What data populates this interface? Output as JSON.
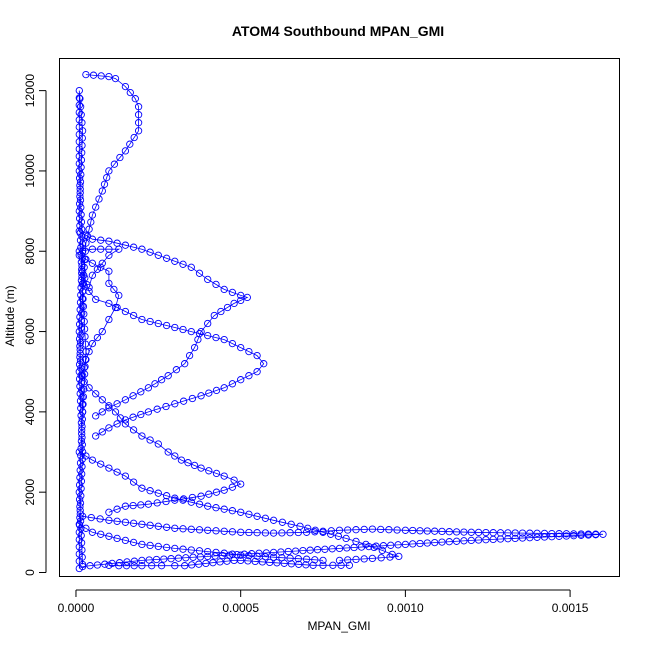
{
  "chart_data": {
    "type": "scatter",
    "title": "ATOM4 Southbound MPAN_GMI",
    "xlabel": "MPAN_GMI",
    "ylabel": "Altitude (m)",
    "xlim": [
      -5e-05,
      0.00165
    ],
    "ylim": [
      -100,
      12800
    ],
    "x_ticks": [
      0.0,
      0.0005,
      0.001,
      0.0015
    ],
    "x_tick_labels": [
      "0.0000",
      "0.0005",
      "0.0010",
      "0.0015"
    ],
    "y_ticks": [
      0,
      2000,
      4000,
      6000,
      8000,
      10000,
      12000
    ],
    "y_tick_labels": [
      "0",
      "2000",
      "4000",
      "6000",
      "8000",
      "10000",
      "12000"
    ],
    "marker": "open-circle",
    "connected": true,
    "color": "#0000ff",
    "grid": false,
    "series": [
      {
        "points": [
          [
            2e-05,
            200
          ],
          [
            1e-05,
            2000
          ],
          [
            2e-05,
            4000
          ],
          [
            1e-05,
            6000
          ],
          [
            2e-05,
            8000
          ],
          [
            1e-05,
            10000
          ],
          [
            1e-05,
            12000
          ],
          [
            2e-05,
            11000
          ],
          [
            1e-05,
            9000
          ],
          [
            2e-05,
            7000
          ],
          [
            1e-05,
            5000
          ],
          [
            2e-05,
            3000
          ],
          [
            1e-05,
            1000
          ],
          [
            1e-05,
            100
          ]
        ]
      },
      {
        "points": [
          [
            3e-05,
            12400
          ],
          [
            0.0001,
            12350
          ],
          [
            0.00012,
            12300
          ],
          [
            0.00015,
            12100
          ],
          [
            0.00018,
            11800
          ],
          [
            0.00019,
            11600
          ],
          [
            0.00019,
            11000
          ],
          [
            0.00015,
            10500
          ],
          [
            0.0001,
            10000
          ],
          [
            8e-05,
            9500
          ],
          [
            5e-05,
            8900
          ],
          [
            3e-05,
            8200
          ],
          [
            2e-05,
            7000
          ],
          [
            3e-05,
            5500
          ],
          [
            2e-05,
            4000
          ]
        ]
      },
      {
        "points": [
          [
            1e-05,
            8500
          ],
          [
            5e-05,
            8300
          ],
          [
            0.0001,
            8250
          ],
          [
            0.00015,
            8150
          ],
          [
            0.0002,
            8050
          ],
          [
            0.00025,
            7900
          ],
          [
            0.0003,
            7750
          ],
          [
            0.00035,
            7600
          ],
          [
            0.0004,
            7300
          ],
          [
            0.00045,
            7050
          ],
          [
            0.0005,
            6900
          ],
          [
            0.00052,
            6850
          ],
          [
            0.00048,
            6700
          ],
          [
            0.00042,
            6400
          ],
          [
            0.00038,
            6000
          ],
          [
            0.00036,
            5600
          ],
          [
            0.00033,
            5200
          ],
          [
            0.00028,
            4900
          ],
          [
            0.00022,
            4600
          ],
          [
            0.00015,
            4300
          ],
          [
            0.0001,
            4100
          ],
          [
            6e-05,
            3900
          ]
        ]
      },
      {
        "points": [
          [
            2e-05,
            7500
          ],
          [
            4e-05,
            7000
          ],
          [
            6e-05,
            6800
          ],
          [
            0.0001,
            6700
          ],
          [
            0.00015,
            6500
          ],
          [
            0.0002,
            6300
          ],
          [
            0.00025,
            6200
          ],
          [
            0.0003,
            6100
          ],
          [
            0.00035,
            6000
          ],
          [
            0.0004,
            5900
          ],
          [
            0.00045,
            5800
          ],
          [
            0.0005,
            5600
          ],
          [
            0.00055,
            5400
          ],
          [
            0.00057,
            5200
          ],
          [
            0.00055,
            5000
          ],
          [
            0.0005,
            4800
          ],
          [
            0.00045,
            4600
          ],
          [
            0.00038,
            4400
          ],
          [
            0.0003,
            4200
          ],
          [
            0.00022,
            4000
          ],
          [
            0.00015,
            3800
          ],
          [
            0.0001,
            3600
          ],
          [
            6e-05,
            3400
          ]
        ]
      },
      {
        "points": [
          [
            1e-05,
            7900
          ],
          [
            5e-05,
            7700
          ],
          [
            0.0001,
            7500
          ],
          [
            0.0001,
            7200
          ],
          [
            0.00013,
            6900
          ],
          [
            0.00012,
            6600
          ],
          [
            0.0001,
            6300
          ],
          [
            8e-05,
            6000
          ],
          [
            5e-05,
            5700
          ],
          [
            3e-05,
            5300
          ],
          [
            2e-05,
            4900
          ],
          [
            4e-05,
            4600
          ],
          [
            8e-05,
            4300
          ],
          [
            0.00012,
            4000
          ],
          [
            0.00015,
            3700
          ],
          [
            0.0002,
            3400
          ],
          [
            0.00025,
            3200
          ],
          [
            0.00028,
            3000
          ],
          [
            0.00032,
            2800
          ],
          [
            0.00038,
            2600
          ],
          [
            0.00045,
            2400
          ],
          [
            0.00048,
            2300
          ],
          [
            0.0005,
            2200
          ],
          [
            0.00045,
            2050
          ],
          [
            0.00038,
            1900
          ],
          [
            0.0003,
            1800
          ],
          [
            0.00022,
            1700
          ],
          [
            0.00015,
            1650
          ],
          [
            0.0001,
            1500
          ]
        ]
      },
      {
        "points": [
          [
            1e-05,
            8000
          ],
          [
            5e-05,
            8050
          ],
          [
            0.0001,
            8050
          ],
          [
            0.00013,
            8050
          ],
          [
            0.0001,
            7900
          ],
          [
            8e-05,
            7700
          ],
          [
            5e-05,
            7400
          ],
          [
            4e-05,
            7100
          ]
        ]
      },
      {
        "points": [
          [
            1e-05,
            3000
          ],
          [
            5e-05,
            2800
          ],
          [
            0.0001,
            2600
          ],
          [
            0.00015,
            2400
          ],
          [
            0.0002,
            2100
          ],
          [
            0.0003,
            1850
          ],
          [
            0.0004,
            1650
          ],
          [
            0.0005,
            1500
          ],
          [
            0.0006,
            1300
          ],
          [
            0.00068,
            1150
          ],
          [
            0.00075,
            1000
          ],
          [
            0.00082,
            850
          ],
          [
            0.00088,
            700
          ],
          [
            0.00093,
            550
          ],
          [
            0.00096,
            450
          ],
          [
            0.00098,
            400
          ],
          [
            0.0009,
            350
          ],
          [
            0.0008,
            300
          ]
        ]
      },
      {
        "points": [
          [
            2e-05,
            1400
          ],
          [
            0.0001,
            1300
          ],
          [
            0.0002,
            1200
          ],
          [
            0.0003,
            1100
          ],
          [
            0.0004,
            1050
          ],
          [
            0.0005,
            1000
          ],
          [
            0.0006,
            980
          ],
          [
            0.0007,
            1000
          ],
          [
            0.0008,
            1050
          ],
          [
            0.0009,
            1080
          ],
          [
            0.001,
            1050
          ],
          [
            0.0012,
            1000
          ],
          [
            0.0016,
            950
          ],
          [
            0.0012,
            800
          ],
          [
            0.0008,
            600
          ],
          [
            0.0004,
            400
          ],
          [
            0.0002,
            300
          ],
          [
            2e-05,
            150
          ]
        ]
      },
      {
        "points": [
          [
            0.0001,
            180
          ],
          [
            0.00013,
            170
          ],
          [
            0.0002,
            170
          ],
          [
            0.00026,
            170
          ],
          [
            0.0003,
            170
          ],
          [
            0.00033,
            170
          ],
          [
            0.00048,
            300
          ],
          [
            0.0005,
            300
          ],
          [
            0.00072,
            180
          ],
          [
            0.00078,
            180
          ],
          [
            0.00083,
            180
          ]
        ]
      },
      {
        "points": [
          [
            1e-05,
            1200
          ],
          [
            5e-05,
            1000
          ],
          [
            0.0001,
            900
          ],
          [
            0.00015,
            800
          ],
          [
            0.0002,
            700
          ],
          [
            0.00025,
            650
          ],
          [
            0.0003,
            600
          ],
          [
            0.00035,
            560
          ],
          [
            0.0004,
            520
          ],
          [
            0.00045,
            480
          ],
          [
            0.0005,
            430
          ],
          [
            0.0006,
            380
          ],
          [
            0.0007,
            330
          ],
          [
            0.00075,
            300
          ]
        ]
      }
    ]
  }
}
